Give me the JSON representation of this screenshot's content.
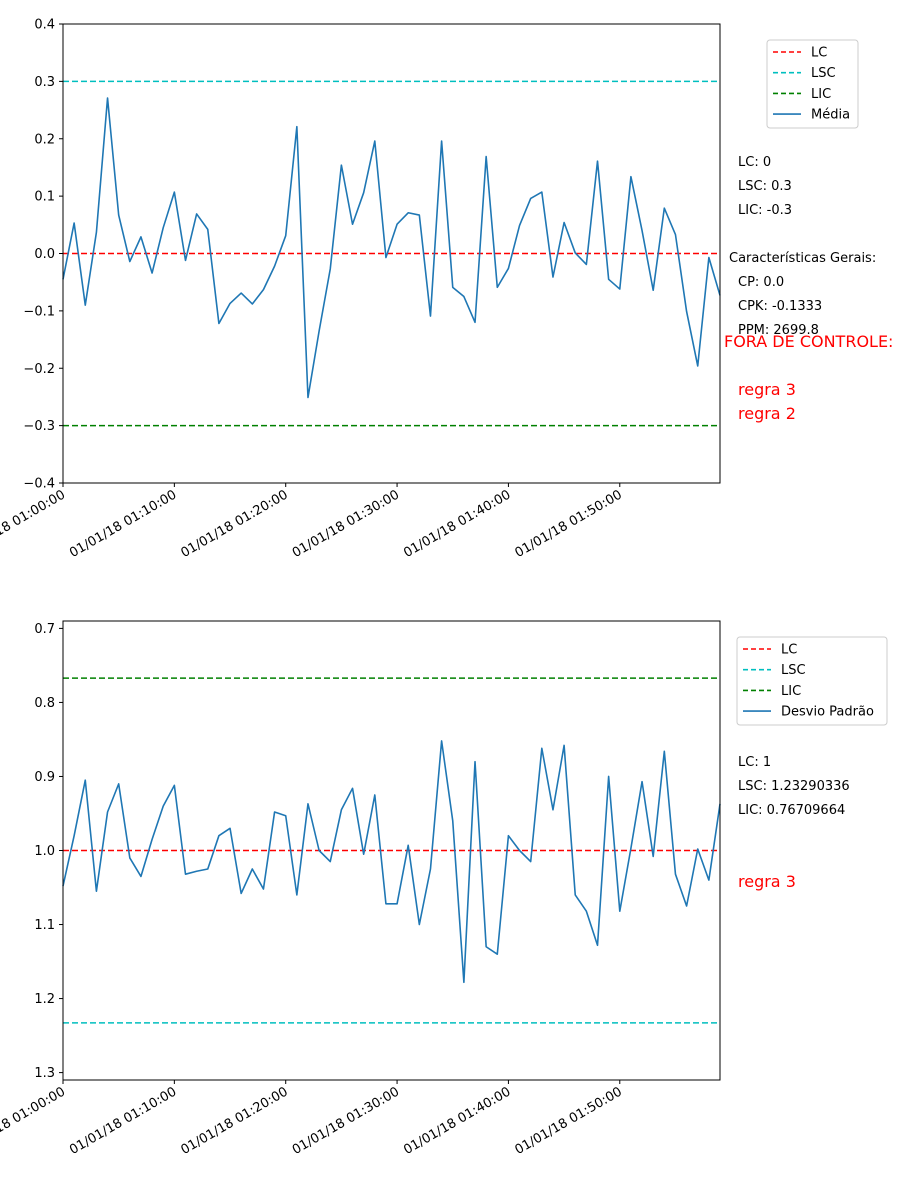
{
  "colors": {
    "lc": "#ff0000",
    "lsc": "#00bfbf",
    "lic": "#008000",
    "series": "#1f77b4",
    "alert": "#ff0000"
  },
  "chart_data": [
    {
      "type": "line",
      "ylim": [
        -0.4,
        0.4
      ],
      "y_inverted": false,
      "yticks": [
        "0.4",
        "0.3",
        "0.2",
        "0.1",
        "0.0",
        "−0.1",
        "−0.2",
        "−0.3",
        "−0.4"
      ],
      "ytick_values": [
        0.4,
        0.3,
        0.2,
        0.1,
        0.0,
        -0.1,
        -0.2,
        -0.3,
        -0.4
      ],
      "xtick_labels": [
        "01/01/18 01:00:00",
        "01/01/18 01:10:00",
        "01/01/18 01:20:00",
        "01/01/18 01:30:00",
        "01/01/18 01:40:00",
        "01/01/18 01:50:00"
      ],
      "xtick_minutes": [
        0,
        10,
        20,
        30,
        40,
        50
      ],
      "x_range_minutes": [
        0,
        59
      ],
      "hlines": [
        {
          "name": "LC",
          "value": 0.0,
          "color": "#ff0000"
        },
        {
          "name": "LSC",
          "value": 0.3,
          "color": "#00bfbf"
        },
        {
          "name": "LIC",
          "value": -0.3,
          "color": "#008000"
        }
      ],
      "series": [
        {
          "name": "Média",
          "values": [
            -0.045,
            0.053,
            -0.09,
            0.037,
            0.271,
            0.067,
            -0.014,
            0.029,
            -0.034,
            0.045,
            0.107,
            -0.012,
            0.069,
            0.042,
            -0.122,
            -0.087,
            -0.069,
            -0.088,
            -0.063,
            -0.022,
            0.031,
            0.221,
            -0.251,
            -0.135,
            -0.027,
            0.154,
            0.051,
            0.106,
            0.196,
            -0.007,
            0.051,
            0.071,
            0.067,
            -0.109,
            0.196,
            -0.059,
            -0.075,
            -0.12,
            0.169,
            -0.059,
            -0.026,
            0.049,
            0.096,
            0.107,
            -0.041,
            0.054,
            0.001,
            -0.019,
            0.161,
            -0.045,
            -0.062,
            0.134,
            0.04,
            -0.064,
            0.079,
            0.033,
            -0.101,
            -0.196,
            -0.007,
            -0.073
          ]
        }
      ],
      "legend": {
        "placement": "top-right-outside",
        "entries": [
          "LC",
          "LSC",
          "LIC",
          "Média"
        ]
      },
      "grid": false
    },
    {
      "type": "line",
      "ylim": [
        0.69,
        1.31
      ],
      "y_inverted": true,
      "yticks": [
        "0.7",
        "0.8",
        "0.9",
        "1.0",
        "1.1",
        "1.2",
        "1.3"
      ],
      "ytick_values": [
        0.7,
        0.8,
        0.9,
        1.0,
        1.1,
        1.2,
        1.3
      ],
      "xtick_labels": [
        "01/01/18 01:00:00",
        "01/01/18 01:10:00",
        "01/01/18 01:20:00",
        "01/01/18 01:30:00",
        "01/01/18 01:40:00",
        "01/01/18 01:50:00"
      ],
      "xtick_minutes": [
        0,
        10,
        20,
        30,
        40,
        50
      ],
      "x_range_minutes": [
        0,
        59
      ],
      "hlines": [
        {
          "name": "LC",
          "value": 1.0,
          "color": "#ff0000"
        },
        {
          "name": "LSC",
          "value": 1.23290336,
          "color": "#00bfbf"
        },
        {
          "name": "LIC",
          "value": 0.76709664,
          "color": "#008000"
        }
      ],
      "series": [
        {
          "name": "Desvio Padrão",
          "values": [
            1.048,
            0.98,
            0.905,
            1.055,
            0.948,
            0.91,
            1.01,
            1.035,
            0.985,
            0.94,
            0.912,
            1.032,
            1.028,
            1.025,
            0.98,
            0.97,
            1.058,
            1.025,
            1.052,
            0.948,
            0.953,
            1.06,
            0.937,
            1.0,
            1.015,
            0.945,
            0.916,
            1.005,
            0.925,
            1.072,
            1.072,
            0.993,
            1.1,
            1.025,
            0.852,
            0.96,
            1.178,
            0.88,
            1.13,
            1.14,
            0.98,
            1.0,
            1.015,
            0.862,
            0.945,
            0.858,
            1.06,
            1.082,
            1.128,
            0.9,
            1.082,
            0.997,
            0.907,
            1.008,
            0.866,
            1.032,
            1.075,
            0.998,
            1.04,
            0.937
          ]
        }
      ],
      "legend": {
        "placement": "top-right-outside",
        "entries": [
          "LC",
          "LSC",
          "LIC",
          "Desvio Padrão"
        ]
      },
      "grid": false
    }
  ],
  "panel1": {
    "lc": "LC: 0",
    "lsc": "LSC: 0.3",
    "lic": "LIC: -0.3",
    "general": "Características Gerais:",
    "cp": "CP: 0.0",
    "cpk": "CPK: -0.1333",
    "ppm": "PPM: 2699.8",
    "out_of_control": "FORA DE CONTROLE:",
    "rules": [
      "regra 3",
      "regra 2"
    ]
  },
  "panel2": {
    "lc": "LC: 1",
    "lsc": "LSC: 1.23290336",
    "lic": "LIC: 0.76709664",
    "rules": [
      "regra 3"
    ]
  }
}
